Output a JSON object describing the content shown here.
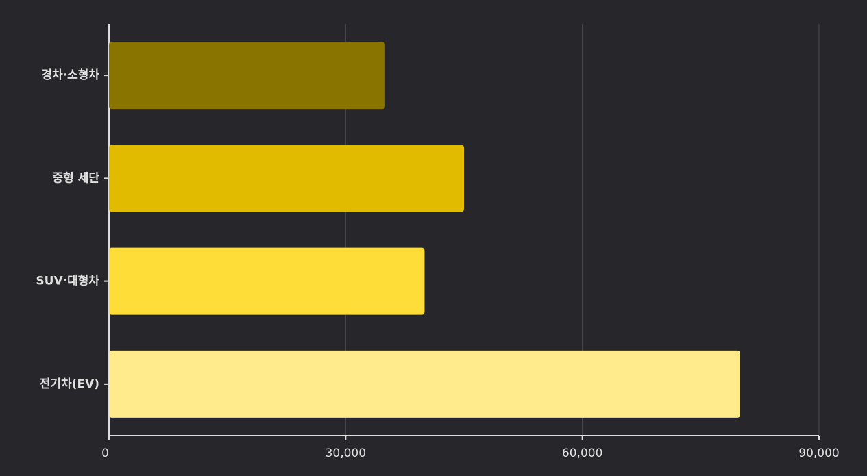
{
  "chart_data": {
    "type": "bar",
    "orientation": "horizontal",
    "categories": [
      "경차·소형차",
      "중형 세단",
      "SUV·대형차",
      "전기차(EV)"
    ],
    "values": [
      35000,
      45000,
      40000,
      80000
    ],
    "colors": [
      "#8a7400",
      "#e0bb00",
      "#ffdd38",
      "#ffea8c"
    ],
    "xlim": [
      0,
      90000
    ],
    "xticks": [
      0,
      {
        "value": 30000,
        "label": "30,000"
      },
      {
        "value": 60000,
        "label": "60,000"
      },
      {
        "value": 90000,
        "label": "90,000"
      }
    ],
    "grid": true
  }
}
